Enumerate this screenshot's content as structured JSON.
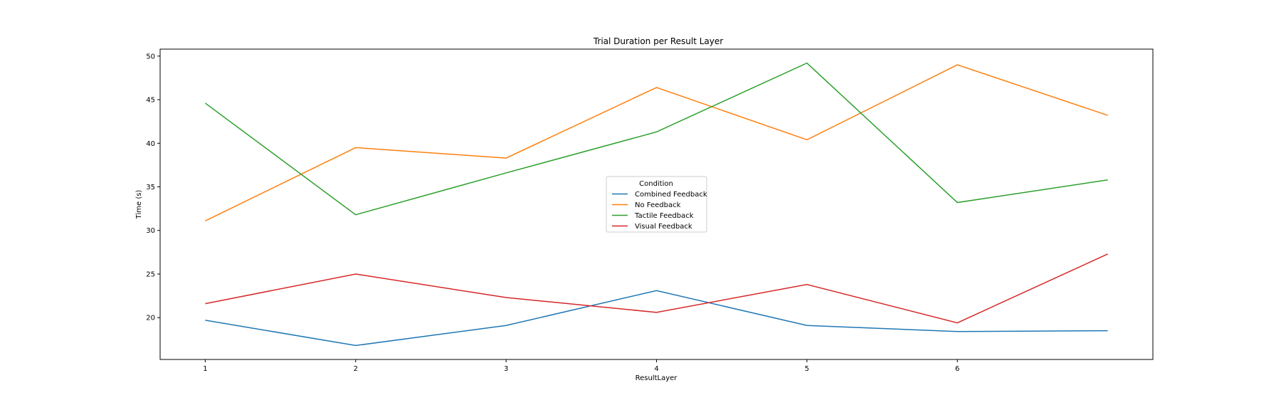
{
  "chart_data": {
    "type": "line",
    "title": "Trial Duration per Result Layer",
    "xlabel": "ResultLayer",
    "ylabel": "Time (s)",
    "x": [
      1,
      2,
      3,
      4,
      5,
      6,
      7
    ],
    "xticks": [
      "1",
      "2",
      "3",
      "4",
      "5",
      "6"
    ],
    "yticks": [
      "20",
      "25",
      "30",
      "35",
      "40",
      "45",
      "50"
    ],
    "xlim": [
      0.7,
      7.3
    ],
    "ylim": [
      15.2,
      50.8
    ],
    "grid": false,
    "legend": {
      "title": "Condition",
      "placement": "center"
    },
    "series": [
      {
        "name": "Combined Feedback",
        "color": "#1f77b4",
        "values": [
          19.7,
          16.8,
          19.1,
          23.1,
          19.1,
          18.4,
          18.5
        ]
      },
      {
        "name": "No Feedback",
        "color": "#ff7f0e",
        "values": [
          31.1,
          39.5,
          38.3,
          46.4,
          40.4,
          49.0,
          43.2
        ]
      },
      {
        "name": "Tactile Feedback",
        "color": "#2ca02c",
        "values": [
          44.6,
          31.8,
          36.6,
          41.3,
          49.2,
          33.2,
          35.8
        ]
      },
      {
        "name": "Visual Feedback",
        "color": "#d62728",
        "values": [
          21.6,
          25.0,
          22.3,
          20.6,
          23.8,
          19.4,
          27.3
        ]
      }
    ]
  }
}
